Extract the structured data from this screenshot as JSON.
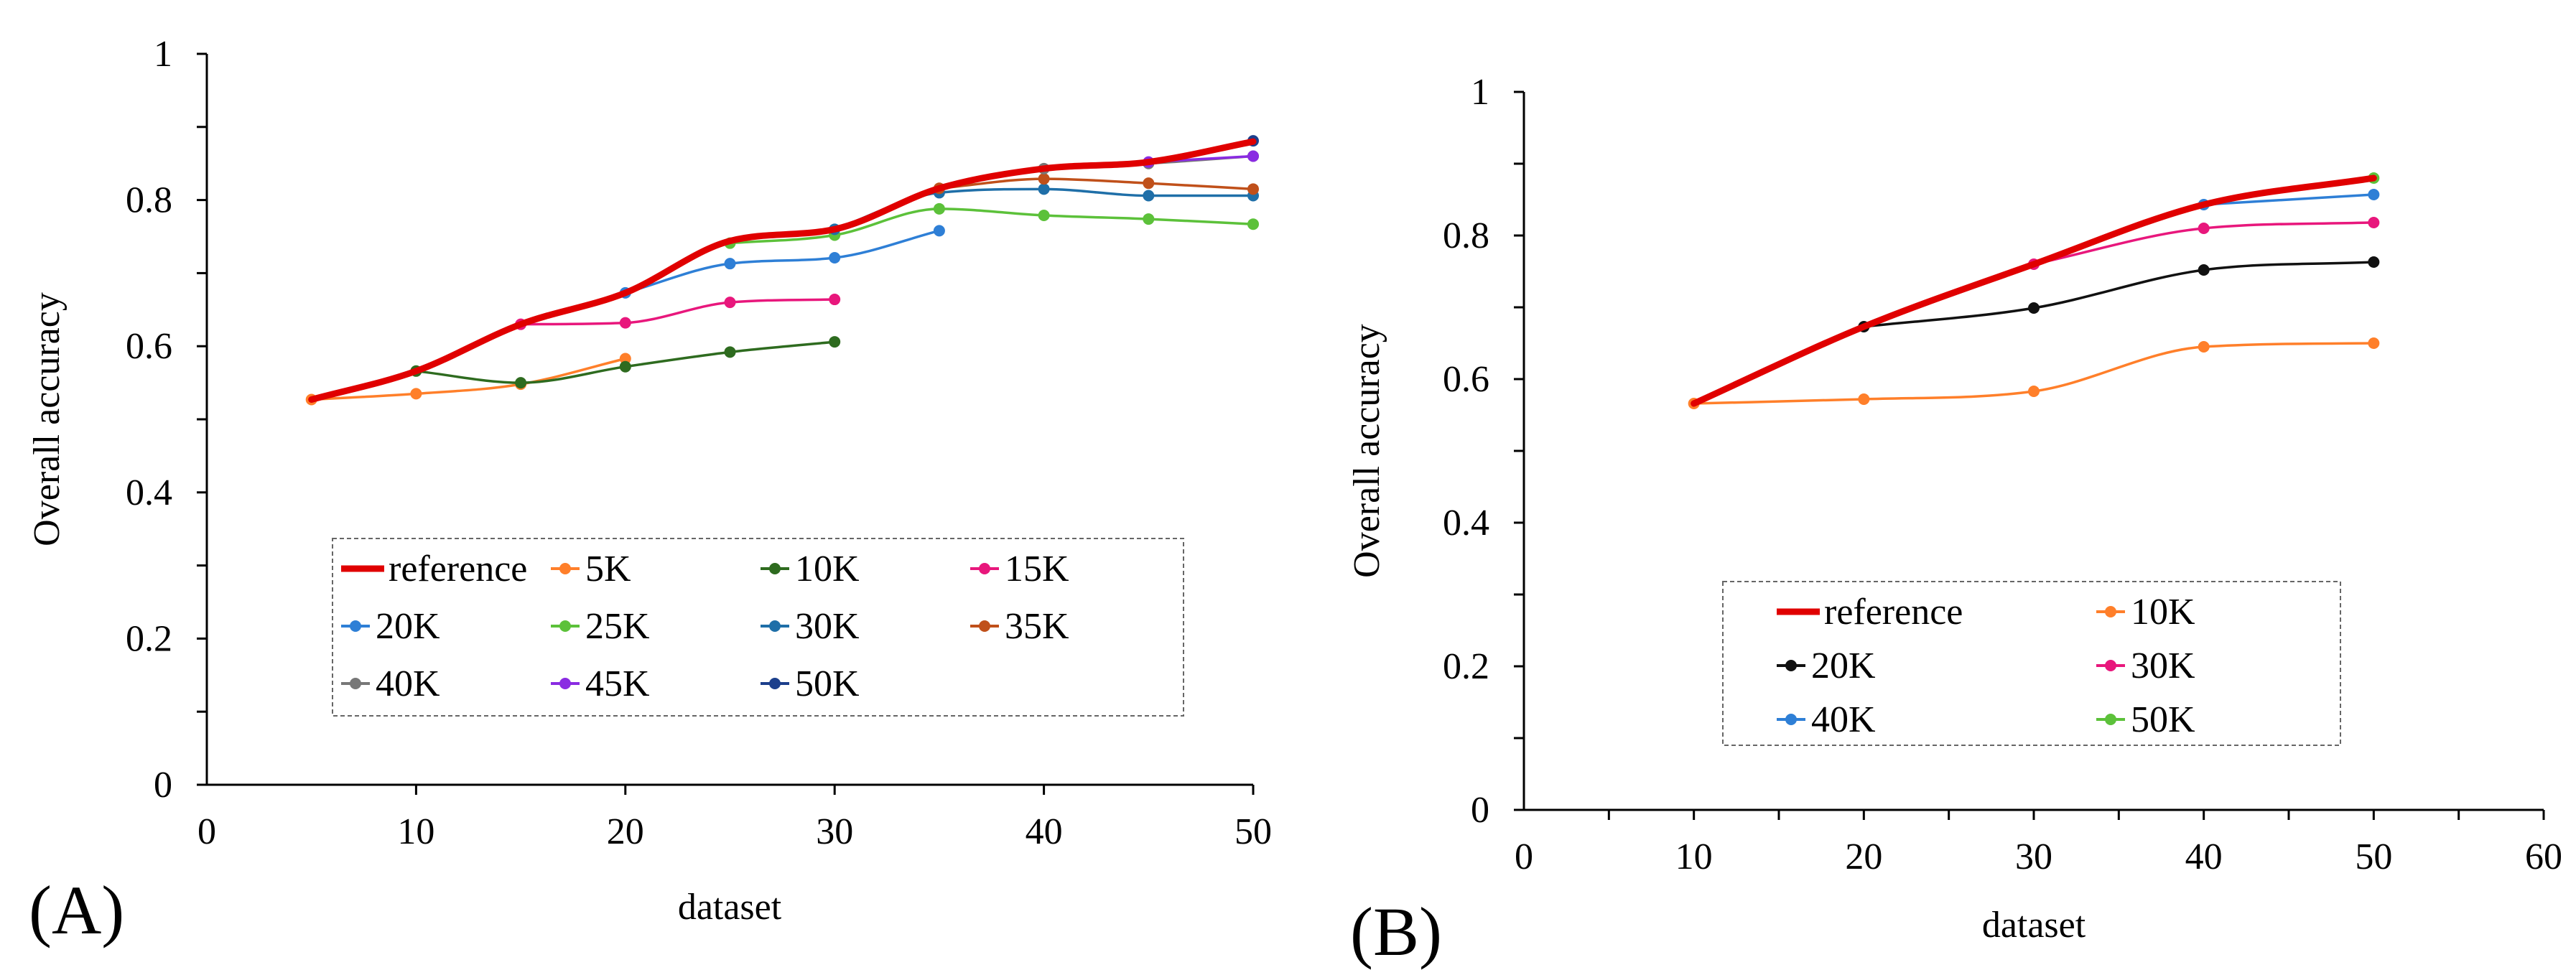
{
  "chart_data": [
    {
      "type": "line",
      "panel_label": "(A)",
      "xlabel": "dataset",
      "ylabel": "Overall accuracy",
      "xlim": [
        0,
        50
      ],
      "ylim": [
        0,
        1
      ],
      "xticks": [
        "0",
        "10",
        "20",
        "30",
        "40",
        "50"
      ],
      "yticks": [
        "0",
        "0.2",
        "0.4",
        "0.6",
        "0.8",
        "1"
      ],
      "grid": false,
      "legend_position": "bottom-center",
      "series": [
        {
          "name": "reference",
          "color": "#e00000",
          "marker": false,
          "x": [
            5,
            10,
            15,
            20,
            25,
            30,
            35,
            40,
            45,
            50
          ],
          "y": [
            0.527,
            0.566,
            0.63,
            0.673,
            0.744,
            0.76,
            0.816,
            0.843,
            0.852,
            0.88
          ]
        },
        {
          "name": "5K",
          "color": "#ff7f2a",
          "marker": true,
          "x": [
            5,
            10,
            15,
            20
          ],
          "y": [
            0.527,
            0.535,
            0.548,
            0.583
          ]
        },
        {
          "name": "10K",
          "color": "#2e6b1f",
          "marker": true,
          "x": [
            10,
            15,
            20,
            25,
            30
          ],
          "y": [
            0.566,
            0.55,
            0.572,
            0.592,
            0.606
          ]
        },
        {
          "name": "15K",
          "color": "#e8177c",
          "marker": true,
          "x": [
            15,
            20,
            25,
            30
          ],
          "y": [
            0.63,
            0.632,
            0.66,
            0.664
          ]
        },
        {
          "name": "20K",
          "color": "#2e7fd6",
          "marker": true,
          "x": [
            20,
            25,
            30,
            35
          ],
          "y": [
            0.673,
            0.713,
            0.721,
            0.758
          ]
        },
        {
          "name": "25K",
          "color": "#5cc13a",
          "marker": true,
          "x": [
            25,
            30,
            35,
            40,
            45,
            50
          ],
          "y": [
            0.741,
            0.752,
            0.788,
            0.779,
            0.774,
            0.767
          ]
        },
        {
          "name": "30K",
          "color": "#1f6fa8",
          "marker": true,
          "x": [
            30,
            35,
            40,
            45,
            50
          ],
          "y": [
            0.76,
            0.81,
            0.815,
            0.806,
            0.806
          ]
        },
        {
          "name": "35K",
          "color": "#c0501a",
          "marker": true,
          "x": [
            35,
            40,
            45,
            50
          ],
          "y": [
            0.816,
            0.829,
            0.823,
            0.815
          ]
        },
        {
          "name": "40K",
          "color": "#777777",
          "marker": true,
          "x": [
            40,
            45,
            50
          ],
          "y": [
            0.843,
            0.85,
            0.86
          ]
        },
        {
          "name": "45K",
          "color": "#8a2be2",
          "marker": true,
          "x": [
            45,
            50
          ],
          "y": [
            0.852,
            0.86
          ]
        },
        {
          "name": "50K",
          "color": "#1c3f8c",
          "marker": true,
          "x": [
            50
          ],
          "y": [
            0.881
          ]
        }
      ]
    },
    {
      "type": "line",
      "panel_label": "(B)",
      "xlabel": "dataset",
      "ylabel": "Overall accuracy",
      "xlim": [
        0,
        60
      ],
      "ylim": [
        0,
        1
      ],
      "xticks": [
        "0",
        "10",
        "20",
        "30",
        "40",
        "50",
        "60"
      ],
      "yticks": [
        "0",
        "0.2",
        "0.4",
        "0.6",
        "0.8",
        "1"
      ],
      "grid": false,
      "legend_position": "bottom-center",
      "series": [
        {
          "name": "reference",
          "color": "#e00000",
          "marker": false,
          "x": [
            10,
            20,
            30,
            40,
            50
          ],
          "y": [
            0.566,
            0.673,
            0.76,
            0.843,
            0.88
          ]
        },
        {
          "name": "10K",
          "color": "#ff7f2a",
          "marker": true,
          "x": [
            10,
            20,
            30,
            40,
            50
          ],
          "y": [
            0.566,
            0.572,
            0.583,
            0.645,
            0.65
          ]
        },
        {
          "name": "20K",
          "color": "#111111",
          "marker": true,
          "x": [
            20,
            30,
            40,
            50
          ],
          "y": [
            0.673,
            0.699,
            0.752,
            0.763
          ]
        },
        {
          "name": "30K",
          "color": "#e8177c",
          "marker": true,
          "x": [
            30,
            40,
            50
          ],
          "y": [
            0.76,
            0.81,
            0.818
          ]
        },
        {
          "name": "40K",
          "color": "#2e7fd6",
          "marker": true,
          "x": [
            40,
            50
          ],
          "y": [
            0.843,
            0.857
          ]
        },
        {
          "name": "50K",
          "color": "#5cc13a",
          "marker": true,
          "x": [
            50
          ],
          "y": [
            0.88
          ]
        }
      ]
    }
  ]
}
